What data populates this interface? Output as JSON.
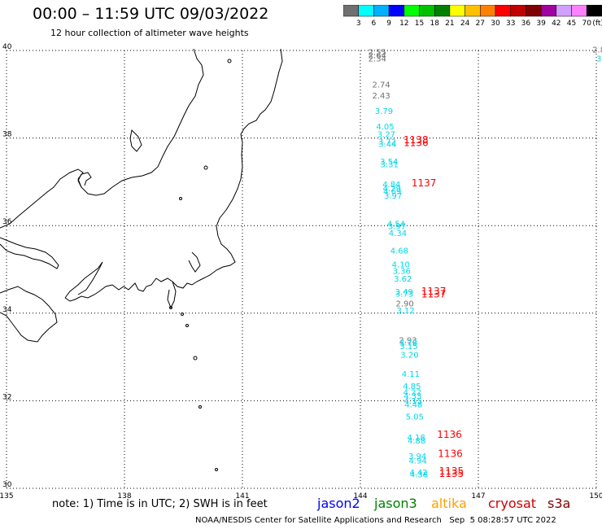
{
  "header": {
    "title": "00:00 – 11:59 UTC 09/03/2022",
    "subtitle": "12 hour collection of altimeter wave heights"
  },
  "colorbar": {
    "colors": [
      "#707070",
      "#00ffff",
      "#00b0ff",
      "#0000ff",
      "#00ff00",
      "#00c000",
      "#008000",
      "#ffff00",
      "#ffc000",
      "#ff8000",
      "#ff0000",
      "#c00000",
      "#800000",
      "#a000a0",
      "#d0a0ff",
      "#ff80ff",
      "#000000"
    ],
    "labels": [
      "3",
      "6",
      "9",
      "12",
      "15",
      "18",
      "21",
      "24",
      "27",
      "30",
      "33",
      "36",
      "39",
      "42",
      "45",
      "70"
    ],
    "unit": "(ft)"
  },
  "axes": {
    "lon_ticks": [
      "135",
      "138",
      "141",
      "144",
      "147",
      "150"
    ],
    "lat_ticks": [
      "30",
      "32",
      "34",
      "36",
      "38",
      "40"
    ],
    "lon_range": [
      135,
      150
    ],
    "lat_range": [
      30,
      40
    ]
  },
  "swh_readings": [
    {
      "lon": 144.2,
      "lat": 39.9,
      "value": "2.55",
      "color": "#707070"
    },
    {
      "lon": 144.2,
      "lat": 39.82,
      "value": "2.64",
      "color": "#707070"
    },
    {
      "lon": 144.2,
      "lat": 39.75,
      "value": "2.34",
      "color": "#707070"
    },
    {
      "lon": 149.9,
      "lat": 39.95,
      "value": "2.8",
      "color": "#707070"
    },
    {
      "lon": 150.0,
      "lat": 39.75,
      "value": "3.",
      "color": "#00d8e8"
    },
    {
      "lon": 144.3,
      "lat": 39.15,
      "value": "2.74",
      "color": "#707070"
    },
    {
      "lon": 144.3,
      "lat": 38.9,
      "value": "2.43",
      "color": "#707070"
    },
    {
      "lon": 144.37,
      "lat": 38.55,
      "value": "3.79",
      "color": "#00d8e8"
    },
    {
      "lon": 144.4,
      "lat": 38.2,
      "value": "4.05",
      "color": "#00d8e8"
    },
    {
      "lon": 144.43,
      "lat": 38.02,
      "value": "3.27",
      "color": "#00d8e8"
    },
    {
      "lon": 144.45,
      "lat": 37.85,
      "value": "3.72",
      "color": "#00d8e8"
    },
    {
      "lon": 144.46,
      "lat": 37.8,
      "value": "3.44",
      "color": "#00d8e8"
    },
    {
      "lon": 144.5,
      "lat": 37.4,
      "value": "3.54",
      "color": "#00d8e8"
    },
    {
      "lon": 144.51,
      "lat": 37.33,
      "value": "3.31",
      "color": "#00d8e8"
    },
    {
      "lon": 144.56,
      "lat": 36.88,
      "value": "4.84",
      "color": "#00d8e8"
    },
    {
      "lon": 144.57,
      "lat": 36.78,
      "value": "4.29",
      "color": "#00d8e8"
    },
    {
      "lon": 144.58,
      "lat": 36.72,
      "value": "4.69",
      "color": "#00d8e8"
    },
    {
      "lon": 144.6,
      "lat": 36.62,
      "value": "3.97",
      "color": "#00d8e8"
    },
    {
      "lon": 144.68,
      "lat": 35.98,
      "value": "4.54",
      "color": "#00d8e8"
    },
    {
      "lon": 144.7,
      "lat": 35.92,
      "value": "3.97",
      "color": "#00d8e8"
    },
    {
      "lon": 144.72,
      "lat": 35.76,
      "value": "4.34",
      "color": "#00d8e8"
    },
    {
      "lon": 144.76,
      "lat": 35.36,
      "value": "4.68",
      "color": "#00d8e8"
    },
    {
      "lon": 144.8,
      "lat": 35.05,
      "value": "4.10",
      "color": "#00d8e8"
    },
    {
      "lon": 144.82,
      "lat": 34.9,
      "value": "3.36",
      "color": "#00d8e8"
    },
    {
      "lon": 144.85,
      "lat": 34.72,
      "value": "3.62",
      "color": "#00d8e8"
    },
    {
      "lon": 144.88,
      "lat": 34.42,
      "value": "3.49",
      "color": "#00d8e8"
    },
    {
      "lon": 144.89,
      "lat": 34.38,
      "value": "3.73",
      "color": "#00d8e8"
    },
    {
      "lon": 144.9,
      "lat": 34.15,
      "value": "2.90",
      "color": "#707070"
    },
    {
      "lon": 144.92,
      "lat": 34.0,
      "value": "3.12",
      "color": "#00d8e8"
    },
    {
      "lon": 144.98,
      "lat": 33.32,
      "value": "2.93",
      "color": "#707070"
    },
    {
      "lon": 144.99,
      "lat": 33.26,
      "value": "3.78",
      "color": "#00d8e8"
    },
    {
      "lon": 145.0,
      "lat": 33.18,
      "value": "3.15",
      "color": "#00d8e8"
    },
    {
      "lon": 145.02,
      "lat": 32.98,
      "value": "3.20",
      "color": "#00d8e8"
    },
    {
      "lon": 145.05,
      "lat": 32.55,
      "value": "4.11",
      "color": "#00d8e8"
    },
    {
      "lon": 145.08,
      "lat": 32.27,
      "value": "4.85",
      "color": "#00d8e8"
    },
    {
      "lon": 145.09,
      "lat": 32.13,
      "value": "4.22",
      "color": "#00d8e8"
    },
    {
      "lon": 145.1,
      "lat": 32.04,
      "value": "4.33",
      "color": "#00d8e8"
    },
    {
      "lon": 145.11,
      "lat": 31.93,
      "value": "4.15",
      "color": "#00d8e8"
    },
    {
      "lon": 145.12,
      "lat": 31.85,
      "value": "4.48",
      "color": "#00d8e8"
    },
    {
      "lon": 145.15,
      "lat": 31.57,
      "value": "5.05",
      "color": "#00d8e8"
    },
    {
      "lon": 145.19,
      "lat": 31.1,
      "value": "4.18",
      "color": "#00d8e8"
    },
    {
      "lon": 145.2,
      "lat": 31.02,
      "value": "4.88",
      "color": "#00d8e8"
    },
    {
      "lon": 145.22,
      "lat": 30.67,
      "value": "3.94",
      "color": "#00d8e8"
    },
    {
      "lon": 145.23,
      "lat": 30.57,
      "value": "4.94",
      "color": "#00d8e8"
    },
    {
      "lon": 145.25,
      "lat": 30.3,
      "value": "4.42",
      "color": "#00d8e8"
    },
    {
      "lon": 145.26,
      "lat": 30.25,
      "value": "4.38",
      "color": "#00d8e8"
    }
  ],
  "cryosat_passes": [
    {
      "lon": 145.1,
      "lat": 37.88,
      "value": "1138",
      "color": "#ff0000"
    },
    {
      "lon": 145.1,
      "lat": 37.82,
      "value": "1136",
      "color": "#ff0000"
    },
    {
      "lon": 145.3,
      "lat": 36.9,
      "value": "1137",
      "color": "#ff0000"
    },
    {
      "lon": 145.55,
      "lat": 34.42,
      "value": "1137",
      "color": "#ff0000"
    },
    {
      "lon": 145.55,
      "lat": 34.36,
      "value": "1137",
      "color": "#ff0000"
    },
    {
      "lon": 145.95,
      "lat": 31.15,
      "value": "1136",
      "color": "#ff0000"
    },
    {
      "lon": 145.97,
      "lat": 30.72,
      "value": "1136",
      "color": "#ff0000"
    },
    {
      "lon": 146.0,
      "lat": 30.32,
      "value": "1135",
      "color": "#ff0000"
    },
    {
      "lon": 146.0,
      "lat": 30.26,
      "value": "1135",
      "color": "#ff0000"
    }
  ],
  "note": "note: 1) Time is in UTC; 2) SWH is in feet",
  "legend": [
    {
      "label": "jason2",
      "color": "#0000ff"
    },
    {
      "label": "jason3",
      "color": "#008000"
    },
    {
      "label": "altika",
      "color": "#ffa000"
    },
    {
      "label": "cryosat",
      "color": "#d00000"
    },
    {
      "label": "s3a",
      "color": "#800000"
    }
  ],
  "footer": "NOAA/NESDIS Center for Satellite Applications and Research   Sep  5 08:28:57 UTC 2022"
}
